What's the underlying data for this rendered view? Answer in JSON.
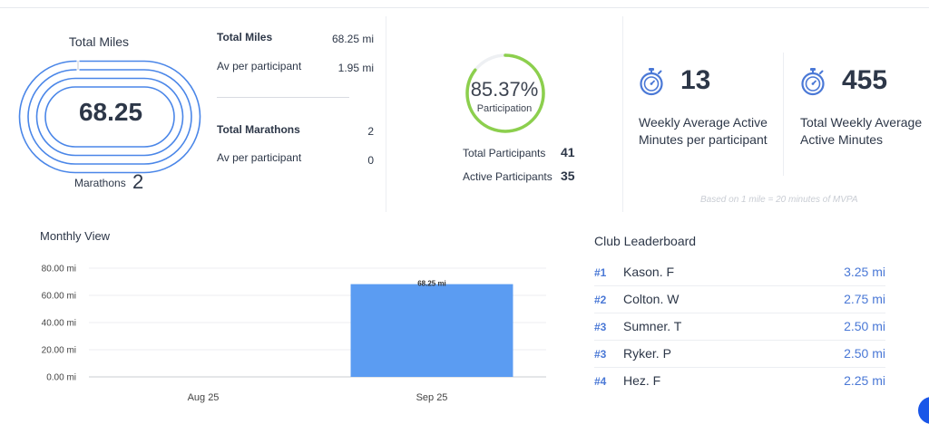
{
  "total_miles_card": {
    "title": "Total Miles",
    "value": "68.25",
    "marathons_label": "Marathons",
    "marathons_value": "2"
  },
  "stats": {
    "total_miles_label": "Total Miles",
    "total_miles_value": "68.25 mi",
    "av_miles_label": "Av per participant",
    "av_miles_value": "1.95 mi",
    "total_marathons_label": "Total Marathons",
    "total_marathons_value": "2",
    "av_marathons_label": "Av per participant",
    "av_marathons_value": "0"
  },
  "participation": {
    "percent_text": "85.37%",
    "percent": 85.37,
    "label": "Participation",
    "total_label": "Total Participants",
    "total_value": "41",
    "active_label": "Active Participants",
    "active_value": "35",
    "ring_color": "#8ccf4d"
  },
  "weekly": {
    "per_participant_value": "13",
    "per_participant_label_1": "Weekly Average Active",
    "per_participant_label_2": "Minutes per participant",
    "total_value": "455",
    "total_label_1": "Total Weekly Average",
    "total_label_2": "Active Minutes",
    "icon": "stopwatch-icon",
    "icon_color": "#4a78d6",
    "footnote": "Based on 1 mile = 20 minutes of MVPA"
  },
  "monthly_view": {
    "title": "Monthly View"
  },
  "chart_data": {
    "type": "bar",
    "categories": [
      "Aug 25",
      "Sep 25"
    ],
    "values": [
      0,
      68.25
    ],
    "data_labels": [
      "",
      "68.25 mi"
    ],
    "yticks": [
      "0.00 mi",
      "20.00 mi",
      "40.00 mi",
      "60.00 mi",
      "80.00 mi"
    ],
    "ylim": [
      0,
      80
    ],
    "bar_color": "#5b9cf2",
    "grid": true
  },
  "leaderboard": {
    "title": "Club Leaderboard",
    "rows": [
      {
        "rank": "#1",
        "name": "Kason. F",
        "miles": "3.25 mi"
      },
      {
        "rank": "#2",
        "name": "Colton. W",
        "miles": "2.75 mi"
      },
      {
        "rank": "#3",
        "name": "Sumner. T",
        "miles": "2.50 mi"
      },
      {
        "rank": "#3",
        "name": "Ryker. P",
        "miles": "2.50 mi"
      },
      {
        "rank": "#4",
        "name": "Hez. F",
        "miles": "2.25 mi"
      }
    ],
    "rank_color": "#4a78d6"
  }
}
